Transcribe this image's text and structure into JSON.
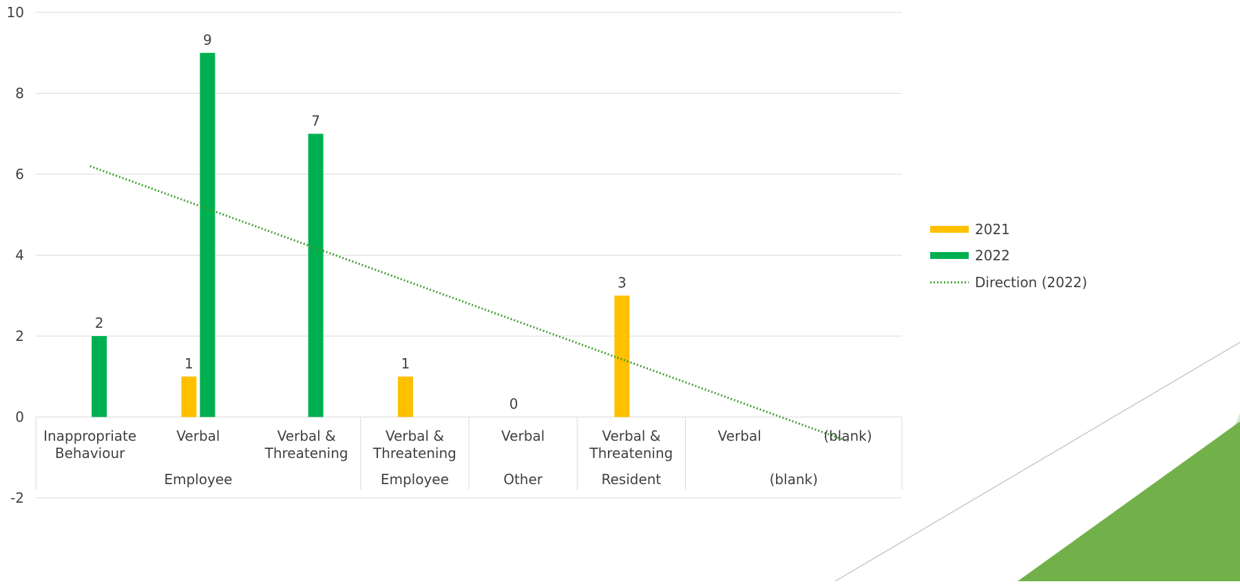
{
  "chart_data": {
    "type": "bar",
    "ylim": [
      -2,
      10
    ],
    "y_ticks": [
      -2,
      0,
      2,
      4,
      6,
      8,
      10
    ],
    "grid": true,
    "legend_position": "right",
    "categories": [
      {
        "label": "Inappropriate\nBehaviour",
        "group": "Employee"
      },
      {
        "label": "Verbal",
        "group": "Employee"
      },
      {
        "label": "Verbal &\nThreatening",
        "group": "Employee"
      },
      {
        "label": "Verbal &\nThreatening",
        "group": "Employee"
      },
      {
        "label": "Verbal",
        "group": "Other"
      },
      {
        "label": "Verbal &\nThreatening",
        "group": "Resident"
      },
      {
        "label": "Verbal",
        "group": "(blank)"
      },
      {
        "label": "(blank)",
        "group": "(blank)"
      }
    ],
    "groups": [
      {
        "label": "Employee",
        "count": 3
      },
      {
        "label": "Employee",
        "count": 1
      },
      {
        "label": "Other",
        "count": 1
      },
      {
        "label": "Resident",
        "count": 1
      },
      {
        "label": "(blank)",
        "count": 2
      }
    ],
    "series": [
      {
        "name": "2021",
        "color": "#FFC000",
        "values": [
          null,
          1,
          null,
          1,
          0,
          3,
          null,
          null
        ],
        "data_labels": [
          "",
          "1",
          "",
          "1",
          "0",
          "3",
          "",
          ""
        ]
      },
      {
        "name": "2022",
        "color": "#00B050",
        "values": [
          2,
          9,
          7,
          null,
          null,
          null,
          null,
          null
        ],
        "data_labels": [
          "2",
          "9",
          "7",
          "",
          "",
          "",
          "",
          ""
        ]
      }
    ],
    "trendline": {
      "name": "Direction (2022)",
      "color": "#3E9F2E",
      "style": "dotted",
      "start": 6.2,
      "end": -0.6
    }
  }
}
